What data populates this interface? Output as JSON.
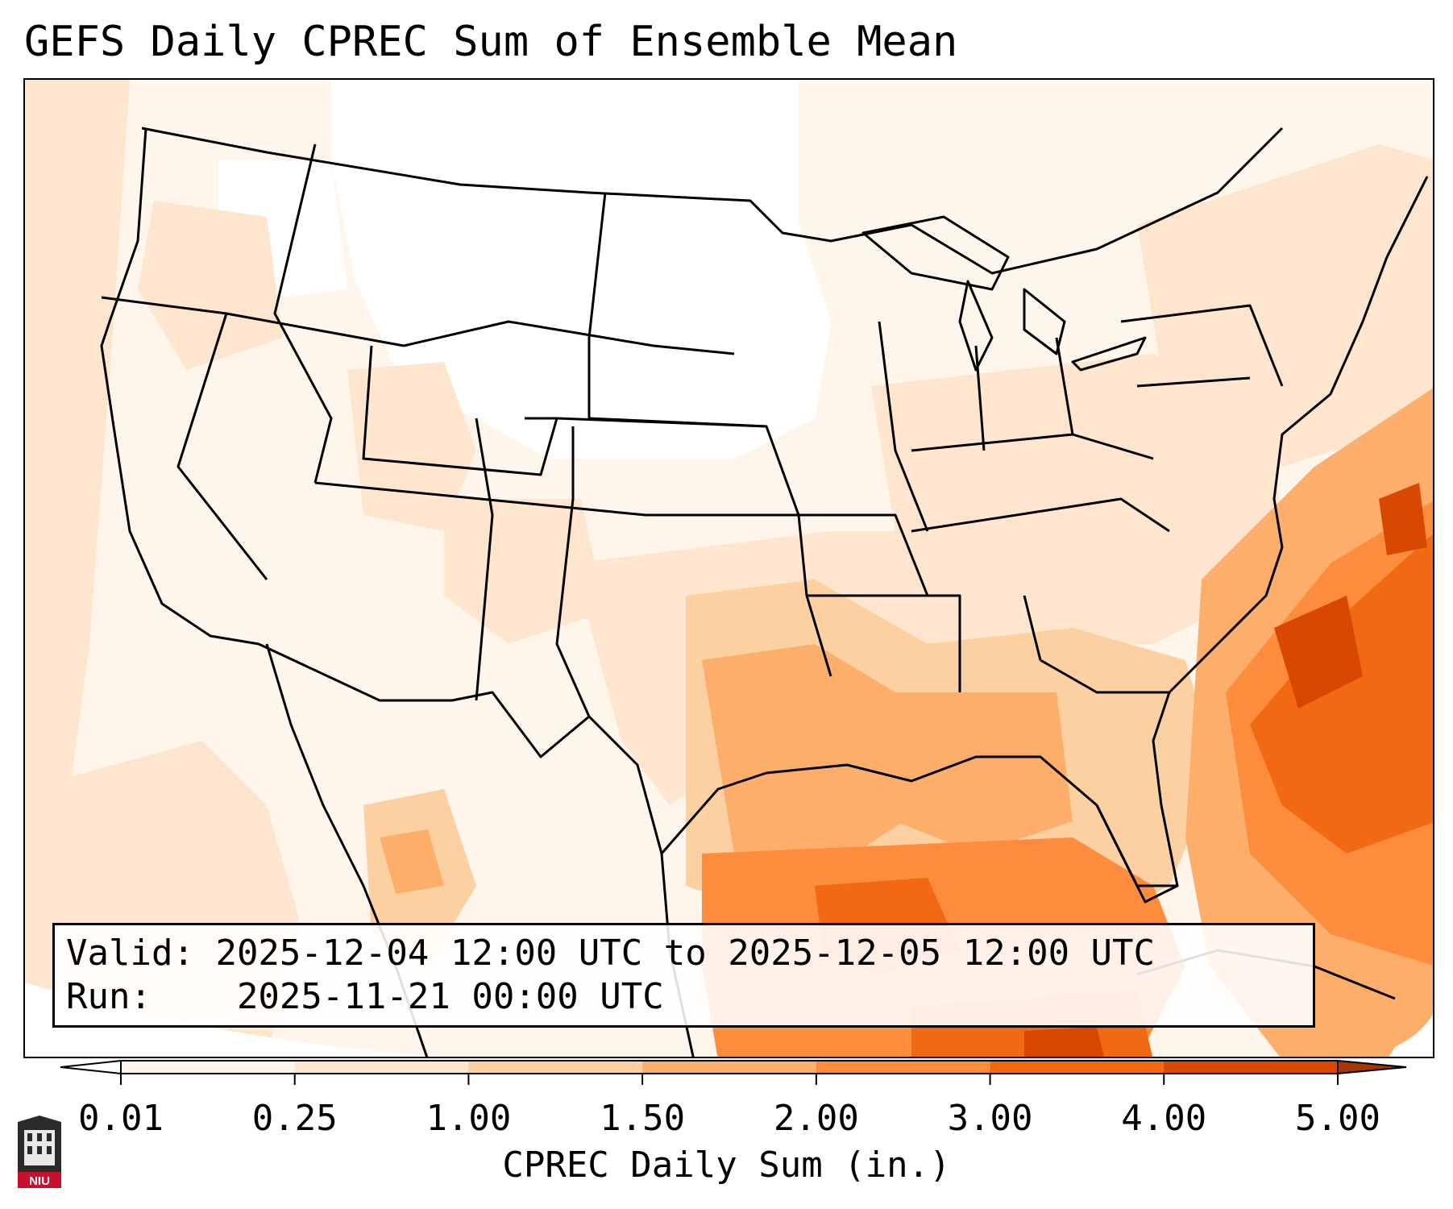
{
  "title": "GEFS Daily CPREC Sum of Ensemble Mean",
  "info": {
    "valid_label": "Valid:",
    "valid_value": "2025-12-04 12:00 UTC to 2025-12-05 12:00 UTC",
    "run_label": "Run:",
    "run_value": "2025-11-21 00:00 UTC"
  },
  "colorbar": {
    "label": "CPREC Daily Sum (in.)",
    "ticks": [
      "0.01",
      "0.25",
      "1.00",
      "1.50",
      "2.00",
      "3.00",
      "4.00",
      "5.00"
    ],
    "colors": [
      "#fff5eb",
      "#fee6ce",
      "#fdd0a2",
      "#fdae6b",
      "#fd8d3c",
      "#f16913",
      "#d94801",
      "#a63603"
    ],
    "under_color": "#ffffff",
    "over_color": "#8c2d04"
  },
  "map": {
    "projection": "Lambert conformal, CONUS",
    "precip_legend_colors": {
      "lt_0_01": "#ffffff",
      "0_01_0_25": "#fff5eb",
      "0_25_1_00": "#fee6ce",
      "1_00_1_50": "#fdd0a2",
      "1_50_2_00": "#fdae6b",
      "2_00_3_00": "#fd8d3c",
      "3_00_4_00": "#f16913",
      "4_00_5_00": "#d94801"
    }
  },
  "logo_text": "NIU"
}
